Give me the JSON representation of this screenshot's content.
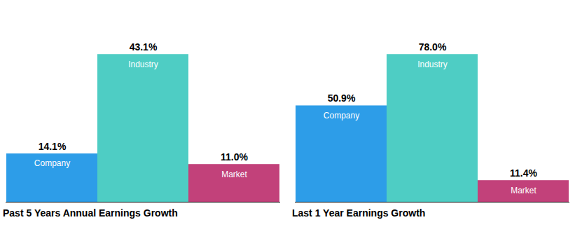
{
  "chart_data": [
    {
      "type": "bar",
      "title": "Past 5 Years Annual Earnings Growth",
      "categories": [
        "Company",
        "Industry",
        "Market"
      ],
      "values": [
        14.1,
        43.1,
        11.0
      ],
      "value_labels": [
        "14.1%",
        "43.1%",
        "11.0%"
      ],
      "colors": [
        "#2d9de8",
        "#4ecdc4",
        "#c2417a"
      ],
      "ylim": [
        0,
        56.03
      ],
      "data_labels": true,
      "tick_labels": false
    },
    {
      "type": "bar",
      "title": "Last 1 Year Earnings Growth",
      "categories": [
        "Company",
        "Industry",
        "Market"
      ],
      "values": [
        50.9,
        78.0,
        11.4
      ],
      "value_labels": [
        "50.9%",
        "78.0%",
        "11.4%"
      ],
      "colors": [
        "#2d9de8",
        "#4ecdc4",
        "#c2417a"
      ],
      "ylim": [
        0,
        101.4
      ],
      "data_labels": true,
      "tick_labels": false
    }
  ]
}
